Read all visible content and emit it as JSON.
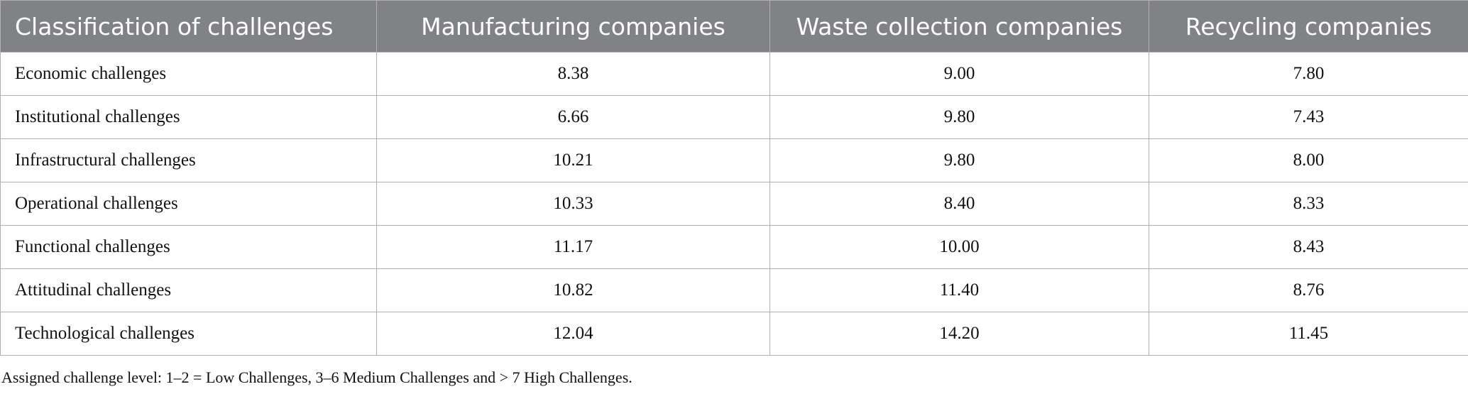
{
  "table": {
    "header": [
      "Classification of challenges",
      "Manufacturing companies",
      "Waste collection companies",
      "Recycling companies"
    ],
    "rows": [
      [
        "Economic challenges",
        "8.38",
        "9.00",
        "7.80"
      ],
      [
        "Institutional challenges",
        "6.66",
        "9.80",
        "7.43"
      ],
      [
        "Infrastructural challenges",
        "10.21",
        "9.80",
        "8.00"
      ],
      [
        "Operational challenges",
        "10.33",
        "8.40",
        "8.33"
      ],
      [
        "Functional challenges",
        "11.17",
        "10.00",
        "8.43"
      ],
      [
        "Attitudinal challenges",
        "10.82",
        "11.40",
        "8.76"
      ],
      [
        "Technological challenges",
        "12.04",
        "14.20",
        "11.45"
      ]
    ]
  },
  "footnote": "Assigned challenge level: 1–2 = Low Challenges, 3–6 Medium Challenges and > 7 High Challenges."
}
